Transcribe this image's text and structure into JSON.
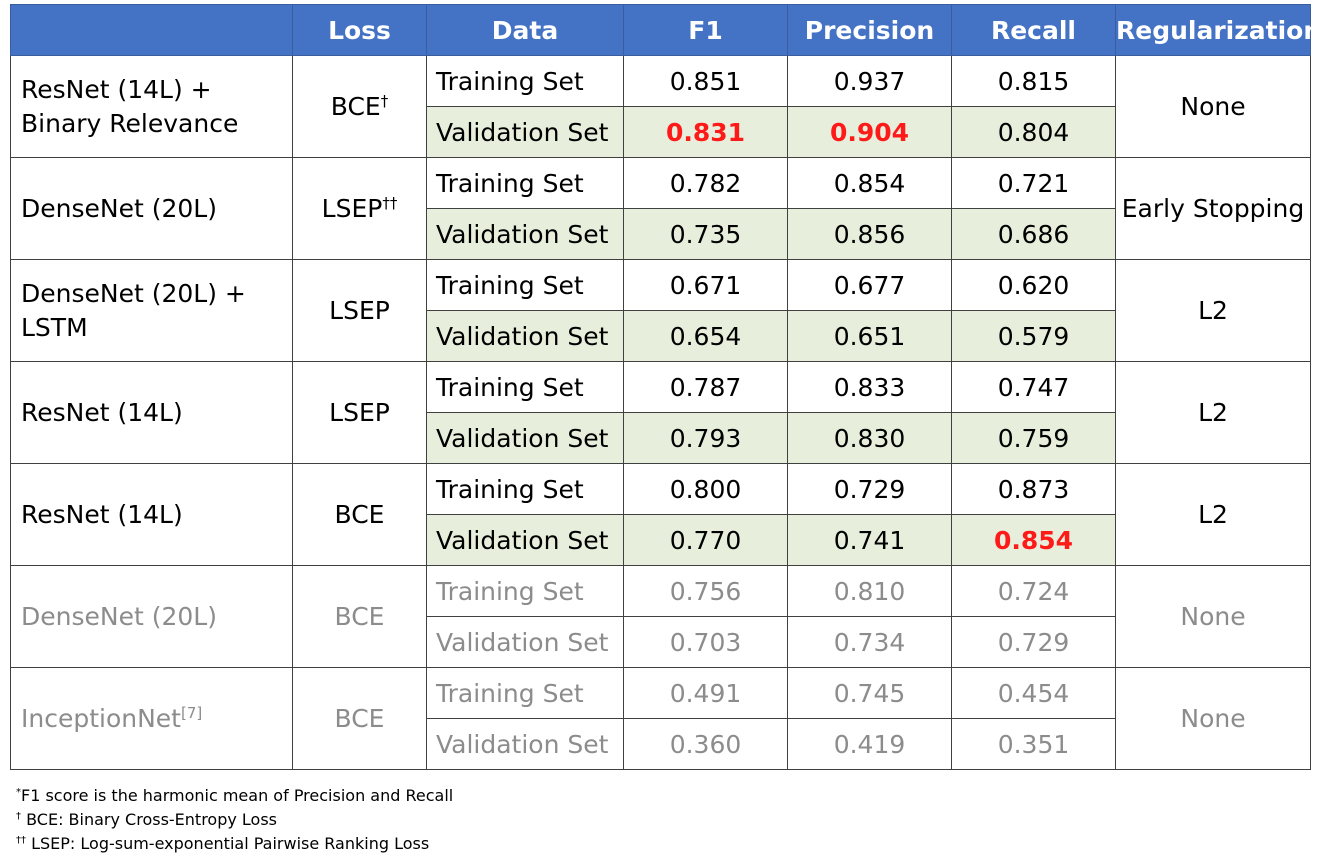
{
  "header": {
    "model": "",
    "loss": "Loss",
    "data": "Data",
    "f1": "F1",
    "precision": "Precision",
    "recall": "Recall",
    "regularization": "Regularization"
  },
  "rows": [
    {
      "model": "ResNet (14L) + Binary Relevance",
      "model_line1": "ResNet (14L) +",
      "model_line2": "Binary Relevance",
      "loss": "BCE",
      "loss_sup": "†",
      "regularization": "None",
      "training": {
        "label": "Training Set",
        "f1": "0.851",
        "precision": "0.937",
        "recall": "0.815"
      },
      "validation": {
        "label": "Validation Set",
        "f1": "0.831",
        "precision": "0.904",
        "recall": "0.804"
      }
    },
    {
      "model": "DenseNet (20L)",
      "loss": "LSEP",
      "loss_sup": "††",
      "regularization": "Early Stopping",
      "training": {
        "label": "Training Set",
        "f1": "0.782",
        "precision": "0.854",
        "recall": "0.721"
      },
      "validation": {
        "label": "Validation Set",
        "f1": "0.735",
        "precision": "0.856",
        "recall": "0.686"
      }
    },
    {
      "model": "DenseNet (20L) + LSTM",
      "model_line1": "DenseNet (20L) +",
      "model_line2": "LSTM",
      "loss": "LSEP",
      "regularization": "L2",
      "training": {
        "label": "Training Set",
        "f1": "0.671",
        "precision": "0.677",
        "recall": "0.620"
      },
      "validation": {
        "label": "Validation Set",
        "f1": "0.654",
        "precision": "0.651",
        "recall": "0.579"
      }
    },
    {
      "model": "ResNet (14L)",
      "loss": "LSEP",
      "regularization": "L2",
      "training": {
        "label": "Training Set",
        "f1": "0.787",
        "precision": "0.833",
        "recall": "0.747"
      },
      "validation": {
        "label": "Validation Set",
        "f1": "0.793",
        "precision": "0.830",
        "recall": "0.759"
      }
    },
    {
      "model": "ResNet (14L)",
      "loss": "BCE",
      "regularization": "L2",
      "training": {
        "label": "Training Set",
        "f1": "0.800",
        "precision": "0.729",
        "recall": "0.873"
      },
      "validation": {
        "label": "Validation Set",
        "f1": "0.770",
        "precision": "0.741",
        "recall": "0.854"
      }
    },
    {
      "model": "DenseNet (20L)",
      "loss": "BCE",
      "regularization": "None",
      "training": {
        "label": "Training Set",
        "f1": "0.756",
        "precision": "0.810",
        "recall": "0.724"
      },
      "validation": {
        "label": "Validation Set",
        "f1": "0.703",
        "precision": "0.734",
        "recall": "0.729"
      }
    },
    {
      "model": "InceptionNet",
      "model_sup": "[7]",
      "loss": "BCE",
      "regularization": "None",
      "training": {
        "label": "Training Set",
        "f1": "0.491",
        "precision": "0.745",
        "recall": "0.454"
      },
      "validation": {
        "label": "Validation Set",
        "f1": "0.360",
        "precision": "0.419",
        "recall": "0.351"
      }
    }
  ],
  "footnotes": [
    {
      "mark": "*",
      "text": "F1 score is the harmonic mean of Precision and Recall"
    },
    {
      "mark": "†",
      "text": " BCE: Binary Cross-Entropy Loss"
    },
    {
      "mark": "††",
      "text": " LSEP: Log-sum-exponential Pairwise Ranking Loss"
    }
  ],
  "colors": {
    "header_bg": "#4472c4",
    "validation_bg": "#e7efdc",
    "best_value": "#ff1a1a",
    "baseline_text": "#8c8c8c"
  },
  "best_values": [
    "0.831",
    "0.904",
    "0.854"
  ]
}
